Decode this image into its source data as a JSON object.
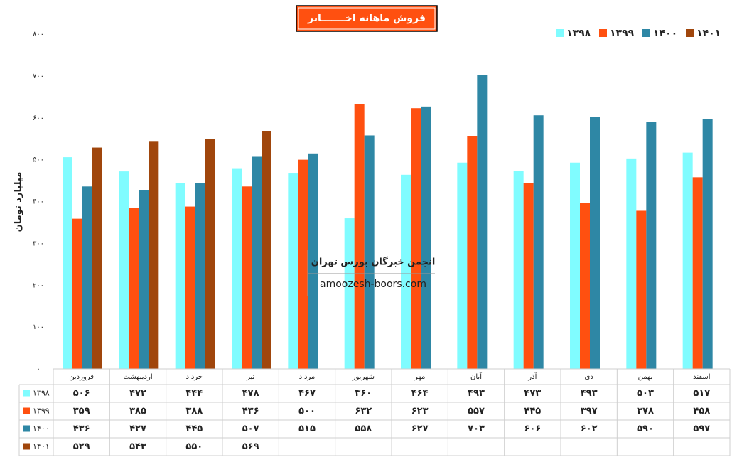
{
  "chart_data": {
    "type": "bar",
    "title": "فروش ماهانه اخـــــــابر",
    "y_label": "میلیارد تومان",
    "watermark": [
      "انجمن خبرگان بورس تهران",
      "amoozesh-boors.com"
    ],
    "categories": [
      "فروردین",
      "اردیبهشت",
      "خرداد",
      "تیر",
      "مرداد",
      "شهریور",
      "مهر",
      "آبان",
      "آذر",
      "دی",
      "بهمن",
      "اسفند"
    ],
    "series": [
      {
        "name": "۱۳۹۸",
        "color": "#80fcff",
        "values": [
          506,
          472,
          444,
          478,
          467,
          360,
          464,
          493,
          473,
          493,
          503,
          517
        ],
        "value_labels": [
          "۵۰۶",
          "۴۷۲",
          "۴۴۴",
          "۴۷۸",
          "۴۶۷",
          "۳۶۰",
          "۴۶۴",
          "۴۹۳",
          "۴۷۳",
          "۴۹۳",
          "۵۰۳",
          "۵۱۷"
        ]
      },
      {
        "name": "۱۳۹۹",
        "color": "#ff5010",
        "values": [
          359,
          385,
          388,
          436,
          500,
          632,
          623,
          557,
          445,
          397,
          378,
          458
        ],
        "value_labels": [
          "۳۵۹",
          "۳۸۵",
          "۳۸۸",
          "۴۳۶",
          "۵۰۰",
          "۶۳۲",
          "۶۲۳",
          "۵۵۷",
          "۴۴۵",
          "۳۹۷",
          "۳۷۸",
          "۴۵۸"
        ]
      },
      {
        "name": "۱۴۰۰",
        "color": "#2e87a5",
        "values": [
          436,
          427,
          445,
          507,
          515,
          558,
          627,
          703,
          606,
          602,
          590,
          597
        ],
        "value_labels": [
          "۴۳۶",
          "۴۲۷",
          "۴۴۵",
          "۵۰۷",
          "۵۱۵",
          "۵۵۸",
          "۶۲۷",
          "۷۰۳",
          "۶۰۶",
          "۶۰۲",
          "۵۹۰",
          "۵۹۷"
        ]
      },
      {
        "name": "۱۴۰۱",
        "color": "#a0460c",
        "values": [
          529,
          543,
          550,
          569,
          null,
          null,
          null,
          null,
          null,
          null,
          null,
          null
        ],
        "value_labels": [
          "۵۲۹",
          "۵۴۳",
          "۵۵۰",
          "۵۶۹",
          null,
          null,
          null,
          null,
          null,
          null,
          null,
          null
        ]
      }
    ],
    "ylim": [
      0,
      800
    ],
    "yticks": [
      {
        "value": 0,
        "label": "۰"
      },
      {
        "value": 100,
        "label": "۱۰۰"
      },
      {
        "value": 200,
        "label": "۲۰۰"
      },
      {
        "value": 300,
        "label": "۳۰۰"
      },
      {
        "value": 400,
        "label": "۴۰۰"
      },
      {
        "value": 500,
        "label": "۵۰۰"
      },
      {
        "value": 600,
        "label": "۶۰۰"
      },
      {
        "value": 700,
        "label": "۷۰۰"
      },
      {
        "value": 800,
        "label": "۸۰۰"
      }
    ],
    "legend": "top-right"
  }
}
